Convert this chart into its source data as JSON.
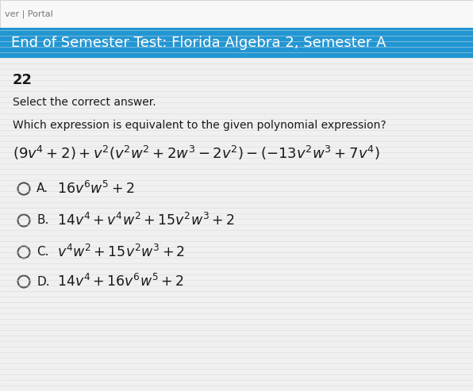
{
  "header_text": "End of Semester Test: Florida Algebra 2, Semester A",
  "header_bg": "#2196d3",
  "header_text_color": "#ffffff",
  "page_bg": "#e8e8e8",
  "content_bg": "#f0f0f0",
  "question_number": "22",
  "instruction": "Select the correct answer.",
  "question": "Which expression is equivalent to the given polynomial expression?",
  "top_label": "ver | Portal",
  "top_label_color": "#777777",
  "option_labels": [
    "A.",
    "B.",
    "C.",
    "D."
  ]
}
